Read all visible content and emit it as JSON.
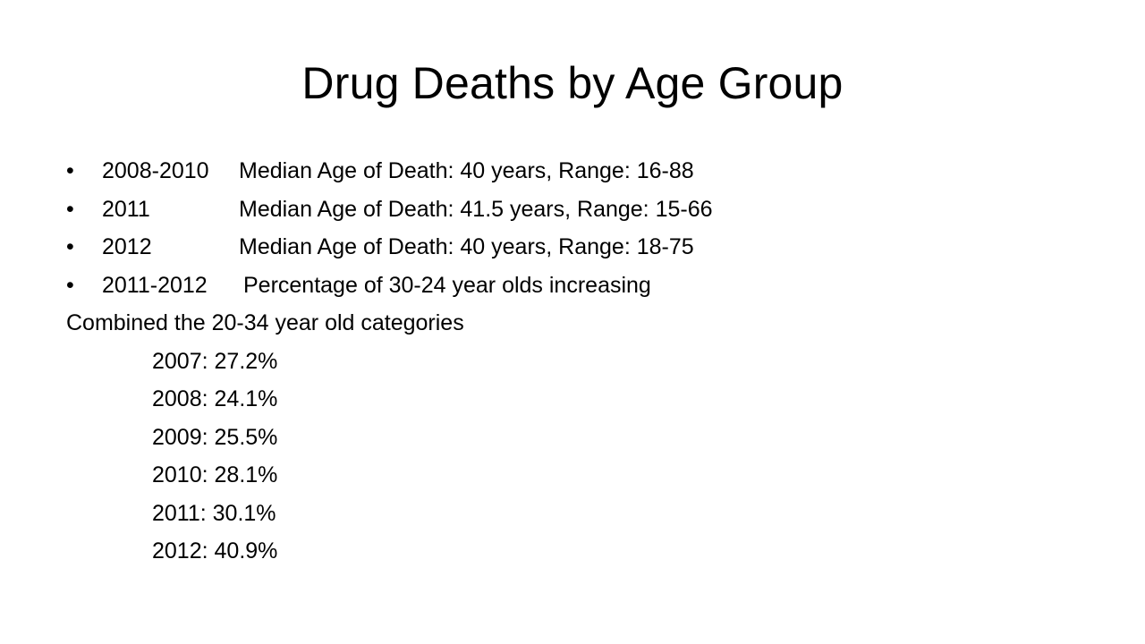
{
  "slide": {
    "title": "Drug Deaths by Age Group",
    "bullets": [
      {
        "bullet": "•",
        "year": "2008-2010",
        "text": "Median Age of Death: 40 years,  Range: 16-88"
      },
      {
        "bullet": "•",
        "year": "2011",
        "text": "Median Age of Death: 41.5 years, Range: 15-66"
      },
      {
        "bullet": "•",
        "year": "2012",
        "text": "Median Age of Death: 40 years, Range: 18-75"
      },
      {
        "bullet": "•",
        "year": "2011-2012",
        "text": "Percentage of 30-24 year olds increasing"
      }
    ],
    "combined_heading": "Combined the 20-34 year old categories",
    "combined_values": [
      "2007: 27.2%",
      "2008: 24.1%",
      "2009: 25.5%",
      "2010: 28.1%",
      "2011: 30.1%",
      "2012: 40.9%"
    ]
  }
}
